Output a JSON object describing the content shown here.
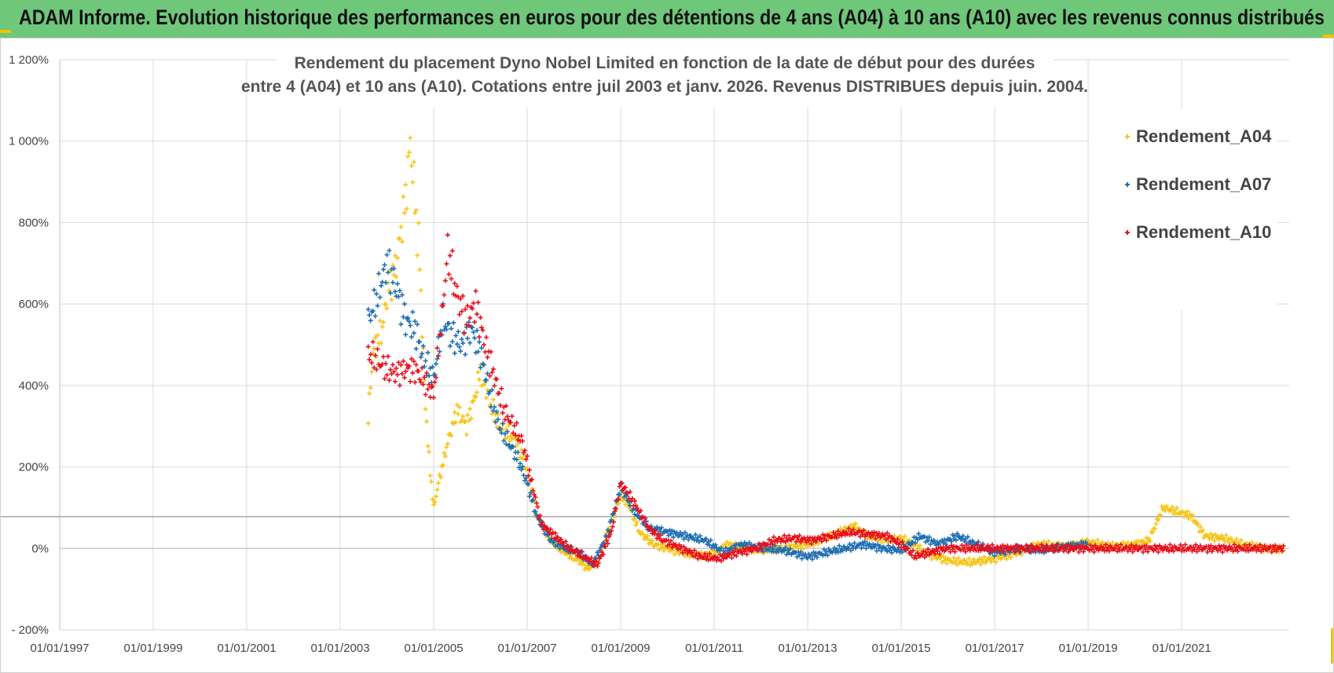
{
  "banner": {
    "text": "ADAM Informe. Evolution historique des performances en euros pour des détentions de 4 ans (A04) à 10 ans (A10) avec les revenus connus distribués",
    "bg_color": "#6fc77a"
  },
  "chart_data": {
    "type": "scatter",
    "title_lines": [
      "Rendement du placement Dyno Nobel Limited en fonction de la date de début pour des durées",
      "entre 4 (A04) et 10 ans (A10). Cotations entre juil 2003 et janv. 2026. Revenus DISTRIBUES depuis juin. 2004."
    ],
    "y_ticks": [
      "1 200%",
      "1 000%",
      "800%",
      "600%",
      "400%",
      "200%",
      "0%",
      "- 200%"
    ],
    "y_values": [
      1200,
      1000,
      800,
      600,
      400,
      200,
      0,
      -200
    ],
    "ylim": [
      -200,
      1200
    ],
    "x_ticks": [
      "01/01/1997",
      "01/01/1999",
      "01/01/2001",
      "01/01/2003",
      "01/01/2005",
      "01/01/2007",
      "01/01/2009",
      "01/01/2011",
      "01/01/2013",
      "01/01/2015",
      "01/01/2017",
      "01/01/2019",
      "01/01/2021"
    ],
    "x_tick_years": [
      1997,
      1999,
      2001,
      2003,
      2005,
      2007,
      2009,
      2011,
      2013,
      2015,
      2017,
      2019,
      2021
    ],
    "xlim": [
      1997.0,
      2023.3
    ],
    "reference_line_y": 78,
    "grid": true,
    "legend_position": "right",
    "series": [
      {
        "name": "Rendement_A04",
        "color": "#f5c518",
        "points": [
          [
            2003.6,
            320
          ],
          [
            2003.7,
            480
          ],
          [
            2003.9,
            540
          ],
          [
            2004.0,
            620
          ],
          [
            2004.2,
            700
          ],
          [
            2004.4,
            860
          ],
          [
            2004.5,
            1000
          ],
          [
            2004.6,
            850
          ],
          [
            2004.7,
            700
          ],
          [
            2004.8,
            400
          ],
          [
            2004.9,
            220
          ],
          [
            2005.0,
            100
          ],
          [
            2005.1,
            160
          ],
          [
            2005.3,
            260
          ],
          [
            2005.5,
            340
          ],
          [
            2005.7,
            300
          ],
          [
            2005.9,
            380
          ],
          [
            2006.0,
            440
          ],
          [
            2006.2,
            360
          ],
          [
            2006.4,
            300
          ],
          [
            2006.6,
            280
          ],
          [
            2006.8,
            260
          ],
          [
            2007.0,
            190
          ],
          [
            2007.2,
            80
          ],
          [
            2007.5,
            20
          ],
          [
            2007.8,
            -10
          ],
          [
            2008.1,
            -30
          ],
          [
            2008.3,
            -50
          ],
          [
            2008.5,
            -30
          ],
          [
            2008.8,
            60
          ],
          [
            2009.0,
            130
          ],
          [
            2009.2,
            100
          ],
          [
            2009.4,
            40
          ],
          [
            2009.7,
            10
          ],
          [
            2010.0,
            0
          ],
          [
            2010.3,
            -10
          ],
          [
            2010.7,
            -20
          ],
          [
            2011.0,
            -10
          ],
          [
            2011.3,
            10
          ],
          [
            2011.7,
            0
          ],
          [
            2012.0,
            -5
          ],
          [
            2012.5,
            0
          ],
          [
            2013.0,
            10
          ],
          [
            2013.5,
            30
          ],
          [
            2014.0,
            55
          ],
          [
            2014.3,
            30
          ],
          [
            2014.7,
            20
          ],
          [
            2015.0,
            25
          ],
          [
            2015.3,
            5
          ],
          [
            2015.6,
            -15
          ],
          [
            2016.0,
            -30
          ],
          [
            2016.5,
            -35
          ],
          [
            2017.0,
            -25
          ],
          [
            2017.5,
            -10
          ],
          [
            2018.0,
            10
          ],
          [
            2018.5,
            5
          ],
          [
            2019.0,
            15
          ],
          [
            2019.5,
            5
          ],
          [
            2020.0,
            10
          ],
          [
            2020.3,
            20
          ],
          [
            2020.6,
            100
          ],
          [
            2020.9,
            90
          ],
          [
            2021.2,
            80
          ],
          [
            2021.5,
            30
          ],
          [
            2021.9,
            25
          ],
          [
            2022.3,
            10
          ],
          [
            2022.8,
            0
          ],
          [
            2023.2,
            0
          ]
        ]
      },
      {
        "name": "Rendement_A07",
        "color": "#1f6fb4",
        "points": [
          [
            2003.6,
            560
          ],
          [
            2003.8,
            620
          ],
          [
            2004.0,
            700
          ],
          [
            2004.2,
            640
          ],
          [
            2004.4,
            560
          ],
          [
            2004.6,
            540
          ],
          [
            2004.8,
            460
          ],
          [
            2005.0,
            420
          ],
          [
            2005.2,
            560
          ],
          [
            2005.4,
            520
          ],
          [
            2005.6,
            500
          ],
          [
            2005.8,
            540
          ],
          [
            2006.0,
            480
          ],
          [
            2006.2,
            380
          ],
          [
            2006.4,
            300
          ],
          [
            2006.6,
            260
          ],
          [
            2006.8,
            220
          ],
          [
            2007.0,
            160
          ],
          [
            2007.2,
            80
          ],
          [
            2007.5,
            20
          ],
          [
            2007.8,
            0
          ],
          [
            2008.1,
            -10
          ],
          [
            2008.4,
            -40
          ],
          [
            2008.7,
            30
          ],
          [
            2009.0,
            150
          ],
          [
            2009.3,
            90
          ],
          [
            2009.6,
            50
          ],
          [
            2010.0,
            40
          ],
          [
            2010.4,
            30
          ],
          [
            2010.8,
            20
          ],
          [
            2011.2,
            -10
          ],
          [
            2011.6,
            10
          ],
          [
            2012.0,
            0
          ],
          [
            2012.5,
            -5
          ],
          [
            2013.0,
            -20
          ],
          [
            2013.4,
            -10
          ],
          [
            2013.8,
            0
          ],
          [
            2014.2,
            10
          ],
          [
            2014.6,
            0
          ],
          [
            2015.0,
            -5
          ],
          [
            2015.4,
            30
          ],
          [
            2015.8,
            10
          ],
          [
            2016.2,
            30
          ],
          [
            2016.6,
            10
          ],
          [
            2017.0,
            -10
          ],
          [
            2017.5,
            0
          ],
          [
            2018.0,
            -5
          ],
          [
            2018.5,
            5
          ],
          [
            2019.0,
            10
          ]
        ]
      },
      {
        "name": "Rendement_A10",
        "color": "#e8101c",
        "points": [
          [
            2003.6,
            480
          ],
          [
            2003.8,
            460
          ],
          [
            2004.0,
            440
          ],
          [
            2004.2,
            430
          ],
          [
            2004.4,
            440
          ],
          [
            2004.6,
            440
          ],
          [
            2004.8,
            410
          ],
          [
            2005.0,
            380
          ],
          [
            2005.2,
            600
          ],
          [
            2005.3,
            730
          ],
          [
            2005.5,
            620
          ],
          [
            2005.7,
            560
          ],
          [
            2005.9,
            600
          ],
          [
            2006.1,
            500
          ],
          [
            2006.3,
            420
          ],
          [
            2006.5,
            340
          ],
          [
            2006.7,
            300
          ],
          [
            2006.9,
            260
          ],
          [
            2007.1,
            160
          ],
          [
            2007.3,
            60
          ],
          [
            2007.6,
            30
          ],
          [
            2007.9,
            0
          ],
          [
            2008.2,
            -20
          ],
          [
            2008.5,
            -40
          ],
          [
            2008.8,
            40
          ],
          [
            2009.0,
            160
          ],
          [
            2009.3,
            110
          ],
          [
            2009.6,
            50
          ],
          [
            2009.9,
            20
          ],
          [
            2010.3,
            0
          ],
          [
            2010.7,
            -20
          ],
          [
            2011.1,
            -25
          ],
          [
            2011.5,
            -10
          ],
          [
            2011.9,
            0
          ],
          [
            2012.3,
            20
          ],
          [
            2012.7,
            25
          ],
          [
            2013.1,
            20
          ],
          [
            2013.5,
            30
          ],
          [
            2013.9,
            40
          ],
          [
            2014.3,
            35
          ],
          [
            2014.7,
            30
          ],
          [
            2015.0,
            10
          ],
          [
            2015.3,
            -20
          ],
          [
            2015.6,
            -10
          ],
          [
            2016.0,
            0
          ],
          [
            2016.5,
            0
          ],
          [
            2017.0,
            0
          ],
          [
            2018.0,
            0
          ],
          [
            2019.0,
            0
          ],
          [
            2020.0,
            0
          ],
          [
            2021.0,
            0
          ],
          [
            2022.0,
            0
          ],
          [
            2023.2,
            0
          ]
        ]
      }
    ]
  }
}
